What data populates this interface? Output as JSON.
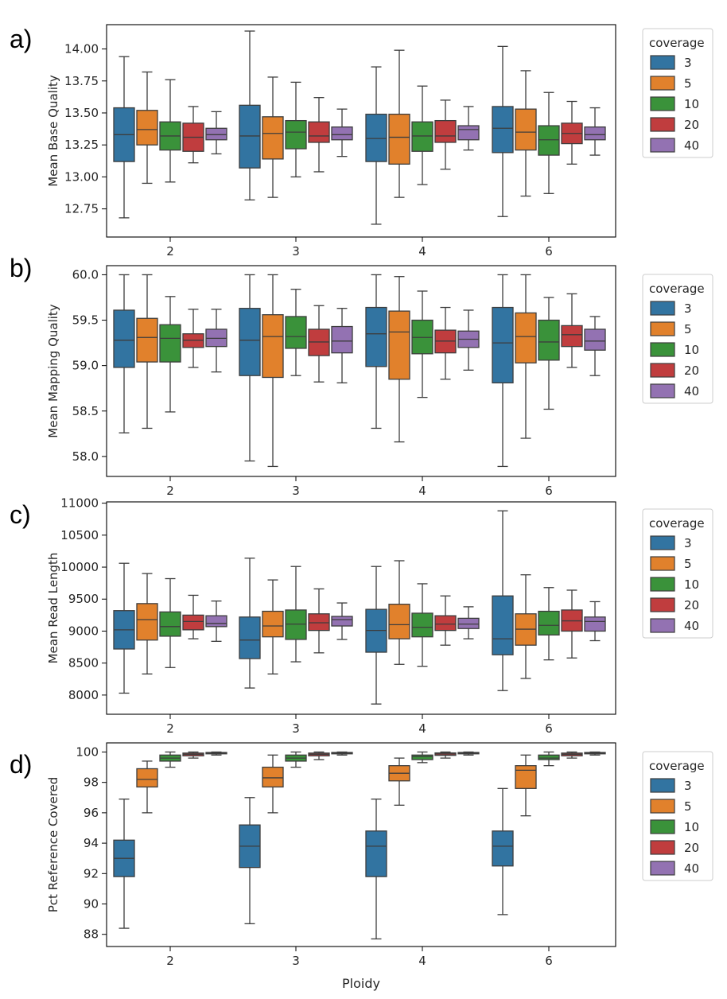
{
  "figure": {
    "xlabel": "Ploidy",
    "legend_title": "coverage",
    "coverage_levels": [
      "3",
      "5",
      "10",
      "20",
      "40"
    ],
    "colors": [
      "#3274a1",
      "#e1812c",
      "#3a923a",
      "#c03d3e",
      "#9372b2"
    ],
    "ploidy_labels": [
      "2",
      "3",
      "4",
      "6"
    ]
  },
  "chart_data": [
    {
      "type": "box",
      "panel": "a)",
      "title": "",
      "xlabel": "",
      "ylabel": "Mean Base Quality",
      "categories": [
        "2",
        "3",
        "4",
        "6"
      ],
      "yticks": [
        12.75,
        13.0,
        13.25,
        13.5,
        13.75,
        14.0
      ],
      "ytick_labels": [
        "12.75",
        "13.00",
        "13.25",
        "13.50",
        "13.75",
        "14.00"
      ],
      "ylim": [
        12.53,
        14.19
      ],
      "series": [
        {
          "name": "3",
          "boxes": [
            [
              12.68,
              13.12,
              13.33,
              13.54,
              13.94
            ],
            [
              12.82,
              13.07,
              13.32,
              13.56,
              14.14
            ],
            [
              12.63,
              13.12,
              13.3,
              13.49,
              13.86
            ],
            [
              12.69,
              13.19,
              13.38,
              13.55,
              14.02
            ]
          ]
        },
        {
          "name": "5",
          "boxes": [
            [
              12.95,
              13.25,
              13.37,
              13.52,
              13.82
            ],
            [
              12.84,
              13.14,
              13.34,
              13.47,
              13.78
            ],
            [
              12.84,
              13.1,
              13.31,
              13.49,
              13.99
            ],
            [
              12.85,
              13.21,
              13.35,
              13.53,
              13.83
            ]
          ]
        },
        {
          "name": "10",
          "boxes": [
            [
              12.96,
              13.21,
              13.32,
              13.43,
              13.76
            ],
            [
              13.0,
              13.22,
              13.35,
              13.44,
              13.74
            ],
            [
              12.94,
              13.2,
              13.32,
              13.43,
              13.71
            ],
            [
              12.87,
              13.17,
              13.29,
              13.4,
              13.66
            ]
          ]
        },
        {
          "name": "20",
          "boxes": [
            [
              13.11,
              13.2,
              13.31,
              13.42,
              13.55
            ],
            [
              13.04,
              13.27,
              13.32,
              13.43,
              13.62
            ],
            [
              13.06,
              13.27,
              13.32,
              13.44,
              13.6
            ],
            [
              13.1,
              13.26,
              13.34,
              13.42,
              13.59
            ]
          ]
        },
        {
          "name": "40",
          "boxes": [
            [
              13.18,
              13.29,
              13.33,
              13.38,
              13.51
            ],
            [
              13.16,
              13.29,
              13.33,
              13.39,
              13.53
            ],
            [
              13.21,
              13.29,
              13.37,
              13.4,
              13.55
            ],
            [
              13.17,
              13.29,
              13.33,
              13.39,
              13.54
            ]
          ]
        }
      ]
    },
    {
      "type": "box",
      "panel": "b)",
      "title": "",
      "xlabel": "",
      "ylabel": "Mean Mapping Quality",
      "categories": [
        "2",
        "3",
        "4",
        "6"
      ],
      "yticks": [
        58.0,
        58.5,
        59.0,
        59.5,
        60.0
      ],
      "ytick_labels": [
        "58.0",
        "58.5",
        "59.0",
        "59.5",
        "60.0"
      ],
      "ylim": [
        57.78,
        60.1
      ],
      "series": [
        {
          "name": "3",
          "boxes": [
            [
              58.26,
              58.98,
              59.28,
              59.61,
              60.0
            ],
            [
              57.95,
              58.89,
              59.28,
              59.63,
              60.0
            ],
            [
              58.31,
              58.99,
              59.35,
              59.64,
              60.0
            ],
            [
              57.89,
              58.81,
              59.25,
              59.64,
              60.0
            ]
          ]
        },
        {
          "name": "5",
          "boxes": [
            [
              58.31,
              59.04,
              59.31,
              59.52,
              60.0
            ],
            [
              57.89,
              58.87,
              59.32,
              59.56,
              60.0
            ],
            [
              58.16,
              58.85,
              59.37,
              59.6,
              59.98
            ],
            [
              58.2,
              59.03,
              59.32,
              59.58,
              60.0
            ]
          ]
        },
        {
          "name": "10",
          "boxes": [
            [
              58.49,
              59.04,
              59.3,
              59.45,
              59.76
            ],
            [
              58.89,
              59.19,
              59.32,
              59.54,
              59.84
            ],
            [
              58.65,
              59.13,
              59.31,
              59.5,
              59.82
            ],
            [
              58.52,
              59.06,
              59.26,
              59.5,
              59.75
            ]
          ]
        },
        {
          "name": "20",
          "boxes": [
            [
              58.98,
              59.2,
              59.28,
              59.35,
              59.62
            ],
            [
              58.82,
              59.11,
              59.26,
              59.4,
              59.66
            ],
            [
              58.85,
              59.14,
              59.27,
              59.39,
              59.64
            ],
            [
              58.98,
              59.21,
              59.34,
              59.44,
              59.79
            ]
          ]
        },
        {
          "name": "40",
          "boxes": [
            [
              58.93,
              59.21,
              59.3,
              59.4,
              59.62
            ],
            [
              58.81,
              59.14,
              59.27,
              59.43,
              59.63
            ],
            [
              58.95,
              59.2,
              59.29,
              59.38,
              59.61
            ],
            [
              58.89,
              59.17,
              59.27,
              59.4,
              59.54
            ]
          ]
        }
      ]
    },
    {
      "type": "box",
      "panel": "c)",
      "title": "",
      "xlabel": "",
      "ylabel": "Mean Read Length",
      "categories": [
        "2",
        "3",
        "4",
        "6"
      ],
      "yticks": [
        8000,
        8500,
        9000,
        9500,
        10000,
        10500,
        11000
      ],
      "ytick_labels": [
        "8000",
        "8500",
        "9000",
        "9500",
        "10000",
        "10500",
        "11000"
      ],
      "ylim": [
        7700,
        11020
      ],
      "series": [
        {
          "name": "3",
          "boxes": [
            [
              8030,
              8720,
              9020,
              9320,
              10060
            ],
            [
              8110,
              8570,
              8860,
              9220,
              10140
            ],
            [
              7860,
              8670,
              9010,
              9340,
              10010
            ],
            [
              8070,
              8630,
              8880,
              9550,
              10880
            ]
          ]
        },
        {
          "name": "5",
          "boxes": [
            [
              8330,
              8860,
              9180,
              9430,
              9900
            ],
            [
              8330,
              8910,
              9080,
              9310,
              9800
            ],
            [
              8480,
              8880,
              9100,
              9420,
              10100
            ],
            [
              8260,
              8780,
              9030,
              9270,
              9880
            ]
          ]
        },
        {
          "name": "10",
          "boxes": [
            [
              8430,
              8920,
              9070,
              9300,
              9820
            ],
            [
              8520,
              8870,
              9110,
              9330,
              10010
            ],
            [
              8450,
              8910,
              9060,
              9280,
              9740
            ],
            [
              8550,
              8940,
              9090,
              9310,
              9680
            ]
          ]
        },
        {
          "name": "20",
          "boxes": [
            [
              8880,
              9020,
              9150,
              9250,
              9560
            ],
            [
              8660,
              9010,
              9130,
              9270,
              9660
            ],
            [
              8780,
              9010,
              9110,
              9240,
              9550
            ],
            [
              8580,
              9000,
              9160,
              9330,
              9640
            ]
          ]
        },
        {
          "name": "40",
          "boxes": [
            [
              8840,
              9070,
              9120,
              9240,
              9470
            ],
            [
              8870,
              9080,
              9180,
              9230,
              9440
            ],
            [
              8880,
              9040,
              9110,
              9200,
              9380
            ],
            [
              8850,
              9000,
              9150,
              9220,
              9460
            ]
          ]
        }
      ]
    },
    {
      "type": "box",
      "panel": "d)",
      "title": "",
      "xlabel": "Ploidy",
      "ylabel": "Pct Reference Covered",
      "categories": [
        "2",
        "3",
        "4",
        "6"
      ],
      "yticks": [
        88,
        90,
        92,
        94,
        96,
        98,
        100
      ],
      "ytick_labels": [
        "88",
        "90",
        "92",
        "94",
        "96",
        "98",
        "100"
      ],
      "ylim": [
        87.2,
        100.6
      ],
      "series": [
        {
          "name": "3",
          "boxes": [
            [
              88.4,
              91.8,
              93.0,
              94.2,
              96.9
            ],
            [
              88.7,
              92.4,
              93.8,
              95.2,
              97.0
            ],
            [
              87.7,
              91.8,
              93.8,
              94.8,
              96.9
            ],
            [
              89.3,
              92.5,
              93.8,
              94.8,
              97.6
            ]
          ]
        },
        {
          "name": "5",
          "boxes": [
            [
              96.0,
              97.7,
              98.2,
              98.9,
              99.4
            ],
            [
              96.0,
              97.7,
              98.3,
              99.0,
              99.8
            ],
            [
              96.5,
              98.1,
              98.6,
              99.1,
              99.6
            ],
            [
              95.8,
              97.6,
              98.8,
              99.1,
              99.8
            ]
          ]
        },
        {
          "name": "10",
          "boxes": [
            [
              99.0,
              99.4,
              99.6,
              99.8,
              100.0
            ],
            [
              99.0,
              99.4,
              99.6,
              99.8,
              100.0
            ],
            [
              99.3,
              99.5,
              99.7,
              99.8,
              100.0
            ],
            [
              99.1,
              99.5,
              99.6,
              99.8,
              100.0
            ]
          ]
        },
        {
          "name": "20",
          "boxes": [
            [
              99.6,
              99.75,
              99.85,
              99.93,
              100.0
            ],
            [
              99.5,
              99.75,
              99.85,
              99.93,
              100.0
            ],
            [
              99.6,
              99.78,
              99.87,
              99.94,
              100.0
            ],
            [
              99.6,
              99.75,
              99.85,
              99.93,
              100.0
            ]
          ]
        },
        {
          "name": "40",
          "boxes": [
            [
              99.8,
              99.88,
              99.93,
              99.97,
              100.0
            ],
            [
              99.8,
              99.88,
              99.93,
              99.97,
              100.0
            ],
            [
              99.8,
              99.88,
              99.93,
              99.97,
              100.0
            ],
            [
              99.8,
              99.88,
              99.93,
              99.97,
              100.0
            ]
          ]
        }
      ]
    }
  ]
}
